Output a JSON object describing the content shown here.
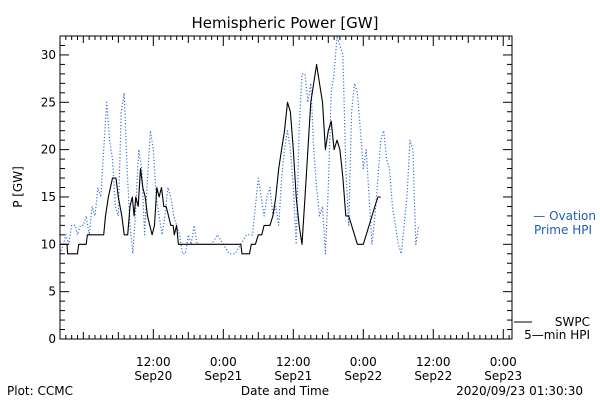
{
  "chart_data": {
    "type": "line",
    "title": "Hemispheric Power [GW]",
    "xlabel": "Date and Time",
    "ylabel": "P [GW]",
    "ylim": [
      0,
      32
    ],
    "yticks": [
      0,
      5,
      10,
      15,
      20,
      25,
      30
    ],
    "xlim": [
      "2020-09-19 20:00",
      "2020-09-23 01:30"
    ],
    "xticks": [
      {
        "t": 16,
        "line1": "12:00",
        "line2": "Sep20"
      },
      {
        "t": 28,
        "line1": "0:00",
        "line2": "Sep21"
      },
      {
        "t": 40,
        "line1": "12:00",
        "line2": "Sep21"
      },
      {
        "t": 52,
        "line1": "0:00",
        "line2": "Sep22"
      },
      {
        "t": 64,
        "line1": "12:00",
        "line2": "Sep22"
      },
      {
        "t": 76,
        "line1": "0:00",
        "line2": "Sep23"
      }
    ],
    "legend_placement": "right-outside",
    "series": [
      {
        "name": "Ovation Prime HPI",
        "legend_line1": "— Ovation",
        "legend_line2": "Prime HPI",
        "style": "dotted",
        "color": "#3a6fd8",
        "points": [
          [
            0,
            9
          ],
          [
            0.6,
            10
          ],
          [
            1,
            11
          ],
          [
            1.5,
            10
          ],
          [
            2,
            12
          ],
          [
            2.6,
            12
          ],
          [
            3,
            11
          ],
          [
            3.5,
            12
          ],
          [
            4,
            12
          ],
          [
            4.5,
            13
          ],
          [
            5,
            11
          ],
          [
            5.5,
            14
          ],
          [
            6,
            13
          ],
          [
            6.5,
            16
          ],
          [
            7,
            15
          ],
          [
            7.5,
            20
          ],
          [
            8,
            25
          ],
          [
            8.5,
            21
          ],
          [
            9,
            19
          ],
          [
            9.5,
            14
          ],
          [
            10,
            13
          ],
          [
            10.5,
            24
          ],
          [
            11,
            26
          ],
          [
            11.5,
            18
          ],
          [
            12,
            12
          ],
          [
            12.5,
            9
          ],
          [
            13,
            14
          ],
          [
            13.5,
            20
          ],
          [
            14,
            18
          ],
          [
            14.5,
            11
          ],
          [
            15,
            17
          ],
          [
            15.5,
            22
          ],
          [
            16,
            20
          ],
          [
            16.5,
            15
          ],
          [
            17,
            13
          ],
          [
            17.5,
            11
          ],
          [
            18,
            13
          ],
          [
            18.5,
            16
          ],
          [
            19,
            15
          ],
          [
            19.5,
            13
          ],
          [
            20,
            12
          ],
          [
            20.5,
            11
          ],
          [
            21,
            9
          ],
          [
            21.5,
            9
          ],
          [
            22,
            11
          ],
          [
            22.5,
            10
          ],
          [
            23,
            12
          ],
          [
            23.5,
            10
          ],
          [
            24,
            10
          ],
          [
            25,
            10
          ],
          [
            26,
            10
          ],
          [
            27,
            11
          ],
          [
            28,
            10
          ],
          [
            29,
            9
          ],
          [
            30,
            9
          ],
          [
            31,
            10
          ],
          [
            32,
            11
          ],
          [
            33,
            11
          ],
          [
            34,
            17
          ],
          [
            34.5,
            15
          ],
          [
            35,
            13
          ],
          [
            35.5,
            15
          ],
          [
            36,
            16
          ],
          [
            36.5,
            13
          ],
          [
            37,
            14
          ],
          [
            37.5,
            12
          ],
          [
            38,
            17
          ],
          [
            38.5,
            20
          ],
          [
            39,
            22
          ],
          [
            39.5,
            20
          ],
          [
            40,
            16
          ],
          [
            40.5,
            10
          ],
          [
            41,
            22
          ],
          [
            41.5,
            28
          ],
          [
            42,
            28
          ],
          [
            42.5,
            25
          ],
          [
            43,
            27
          ],
          [
            43.5,
            20
          ],
          [
            44,
            16
          ],
          [
            44.5,
            13
          ],
          [
            45,
            14
          ],
          [
            45.5,
            9
          ],
          [
            46,
            16
          ],
          [
            46.5,
            26
          ],
          [
            47,
            28
          ],
          [
            47.5,
            32
          ],
          [
            48,
            31
          ],
          [
            48.5,
            30
          ],
          [
            49,
            18
          ],
          [
            49.5,
            12
          ],
          [
            50,
            24
          ],
          [
            50.5,
            27
          ],
          [
            51,
            26
          ],
          [
            51.5,
            22
          ],
          [
            52,
            18
          ],
          [
            52.5,
            20
          ],
          [
            53,
            15
          ],
          [
            53.5,
            10
          ],
          [
            54,
            13
          ],
          [
            54.5,
            17
          ],
          [
            55,
            21
          ],
          [
            55.5,
            22
          ],
          [
            56,
            19
          ],
          [
            56.5,
            18
          ],
          [
            57,
            14
          ],
          [
            57.5,
            12
          ],
          [
            58,
            10
          ],
          [
            58.5,
            9
          ],
          [
            59,
            12
          ],
          [
            59.5,
            15
          ],
          [
            60,
            21
          ],
          [
            60.5,
            20
          ],
          [
            61,
            10
          ],
          [
            61.5,
            12
          ]
        ]
      },
      {
        "name": "SWPC 5-min HPI",
        "legend_line1": "SWPC",
        "legend_line2": "5—min HPI",
        "style": "solid",
        "color": "#000000",
        "points": [
          [
            0,
            10
          ],
          [
            1.2,
            10
          ],
          [
            1.3,
            9
          ],
          [
            3,
            9
          ],
          [
            3.2,
            10
          ],
          [
            4.5,
            10
          ],
          [
            4.7,
            11
          ],
          [
            7.5,
            11
          ],
          [
            7.8,
            13
          ],
          [
            8.3,
            15
          ],
          [
            9,
            17
          ],
          [
            9.6,
            17
          ],
          [
            10,
            15
          ],
          [
            10.6,
            13
          ],
          [
            11,
            11
          ],
          [
            11.6,
            11
          ],
          [
            12,
            14
          ],
          [
            12.4,
            15
          ],
          [
            12.7,
            13
          ],
          [
            13,
            15
          ],
          [
            13.4,
            14
          ],
          [
            13.8,
            18
          ],
          [
            14.2,
            16
          ],
          [
            14.6,
            15
          ],
          [
            15,
            13
          ],
          [
            15.4,
            12
          ],
          [
            15.8,
            11
          ],
          [
            16.2,
            12
          ],
          [
            16.6,
            16
          ],
          [
            17,
            15
          ],
          [
            17.4,
            16
          ],
          [
            17.8,
            14
          ],
          [
            18.2,
            14
          ],
          [
            18.6,
            13
          ],
          [
            19,
            12
          ],
          [
            19.4,
            12
          ],
          [
            19.6,
            11
          ],
          [
            20,
            12
          ],
          [
            20.3,
            10
          ],
          [
            20.6,
            10
          ],
          [
            21,
            10
          ],
          [
            22,
            10
          ],
          [
            22.3,
            10
          ],
          [
            23,
            10
          ],
          [
            24,
            10
          ],
          [
            25,
            10
          ],
          [
            26,
            10
          ],
          [
            28,
            10
          ],
          [
            30,
            10
          ],
          [
            31,
            10
          ],
          [
            31.2,
            9
          ],
          [
            32.5,
            9
          ],
          [
            32.8,
            10
          ],
          [
            33.5,
            10
          ],
          [
            34,
            11
          ],
          [
            34.6,
            11
          ],
          [
            35,
            12
          ],
          [
            36,
            12
          ],
          [
            36.5,
            13
          ],
          [
            37,
            15
          ],
          [
            37.5,
            18
          ],
          [
            38,
            20
          ],
          [
            38.5,
            22
          ],
          [
            39,
            25
          ],
          [
            39.5,
            24
          ],
          [
            40,
            20
          ],
          [
            40.5,
            15
          ],
          [
            41,
            12
          ],
          [
            41.5,
            10
          ],
          [
            42,
            15
          ],
          [
            42.5,
            20
          ],
          [
            43,
            25
          ],
          [
            43.5,
            27
          ],
          [
            44,
            29
          ],
          [
            44.5,
            27
          ],
          [
            45,
            25
          ],
          [
            45.5,
            20
          ],
          [
            46,
            22
          ],
          [
            46.5,
            23
          ],
          [
            47,
            20
          ],
          [
            47.5,
            21
          ],
          [
            48,
            20
          ],
          [
            48.5,
            17
          ],
          [
            49,
            13
          ],
          [
            49.5,
            13
          ],
          [
            50,
            12
          ],
          [
            50.5,
            11
          ],
          [
            51,
            10
          ],
          [
            51.5,
            10
          ],
          [
            52,
            10
          ],
          [
            52.5,
            11
          ],
          [
            53,
            12
          ],
          [
            53.5,
            13
          ],
          [
            54,
            14
          ],
          [
            54.5,
            15
          ],
          [
            55,
            15
          ]
        ]
      }
    ]
  },
  "footer": {
    "left": "Plot: CCMC",
    "right": "2020/09/23 01:30:30"
  }
}
